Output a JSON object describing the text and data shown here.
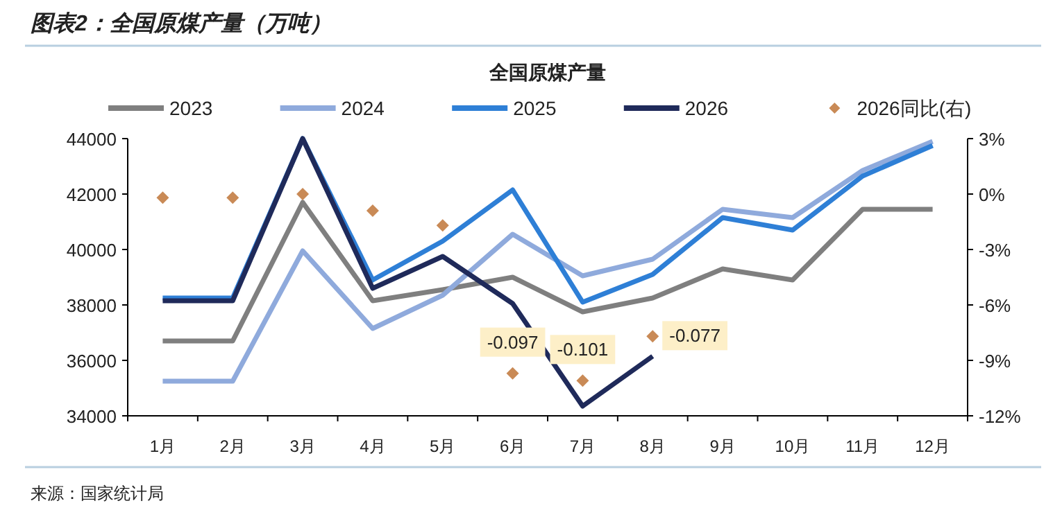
{
  "chart_data": {
    "type": "line",
    "title": "图表2：全国原煤产量（万吨）",
    "subtitle": "全国原煤产量",
    "categories": [
      "1月",
      "2月",
      "3月",
      "4月",
      "5月",
      "6月",
      "7月",
      "8月",
      "9月",
      "10月",
      "11月",
      "12月"
    ],
    "series": [
      {
        "name": "2023",
        "color": "#7f7f7f",
        "values": [
          36700,
          36700,
          41700,
          38150,
          38550,
          39000,
          37750,
          38250,
          39300,
          38900,
          41450,
          41450
        ]
      },
      {
        "name": "2024",
        "color": "#8faadc",
        "values": [
          35250,
          35250,
          39950,
          37150,
          38350,
          40550,
          39050,
          39650,
          41450,
          41150,
          42850,
          43900
        ]
      },
      {
        "name": "2025",
        "color": "#2e7fd6",
        "values": [
          38250,
          38250,
          44000,
          38900,
          40300,
          42150,
          38100,
          39100,
          41150,
          40700,
          42650,
          43750
        ]
      },
      {
        "name": "2026",
        "color": "#1f2a5a",
        "values": [
          38150,
          38150,
          44000,
          38600,
          39750,
          38050,
          34350,
          36150,
          null,
          null,
          null,
          null
        ]
      },
      {
        "name": "2026同比(右)",
        "type": "scatter",
        "axis": "y2",
        "marker": "diamond",
        "color": "#c98a56",
        "values": [
          -0.002,
          -0.002,
          0,
          -0.009,
          -0.017,
          -0.097,
          -0.101,
          -0.077,
          null,
          null,
          null,
          null
        ],
        "value_labels": [
          null,
          null,
          null,
          null,
          null,
          "-0.097",
          "-0.101",
          "-0.077",
          null,
          null,
          null,
          null
        ]
      }
    ],
    "ylim": [
      34000,
      44000
    ],
    "yticks": [
      34000,
      36000,
      38000,
      40000,
      42000,
      44000
    ],
    "y2lim": [
      -0.12,
      0.03
    ],
    "y2ticks": [
      {
        "value": 0.03,
        "label": "3%"
      },
      {
        "value": 0,
        "label": "0%"
      },
      {
        "value": -0.03,
        "label": "-3%"
      },
      {
        "value": -0.06,
        "label": "-6%"
      },
      {
        "value": -0.09,
        "label": "-9%"
      },
      {
        "value": -0.12,
        "label": "-12%"
      }
    ],
    "legend": "top",
    "grid": false,
    "annotations": [
      "来源：国家统计局"
    ]
  }
}
